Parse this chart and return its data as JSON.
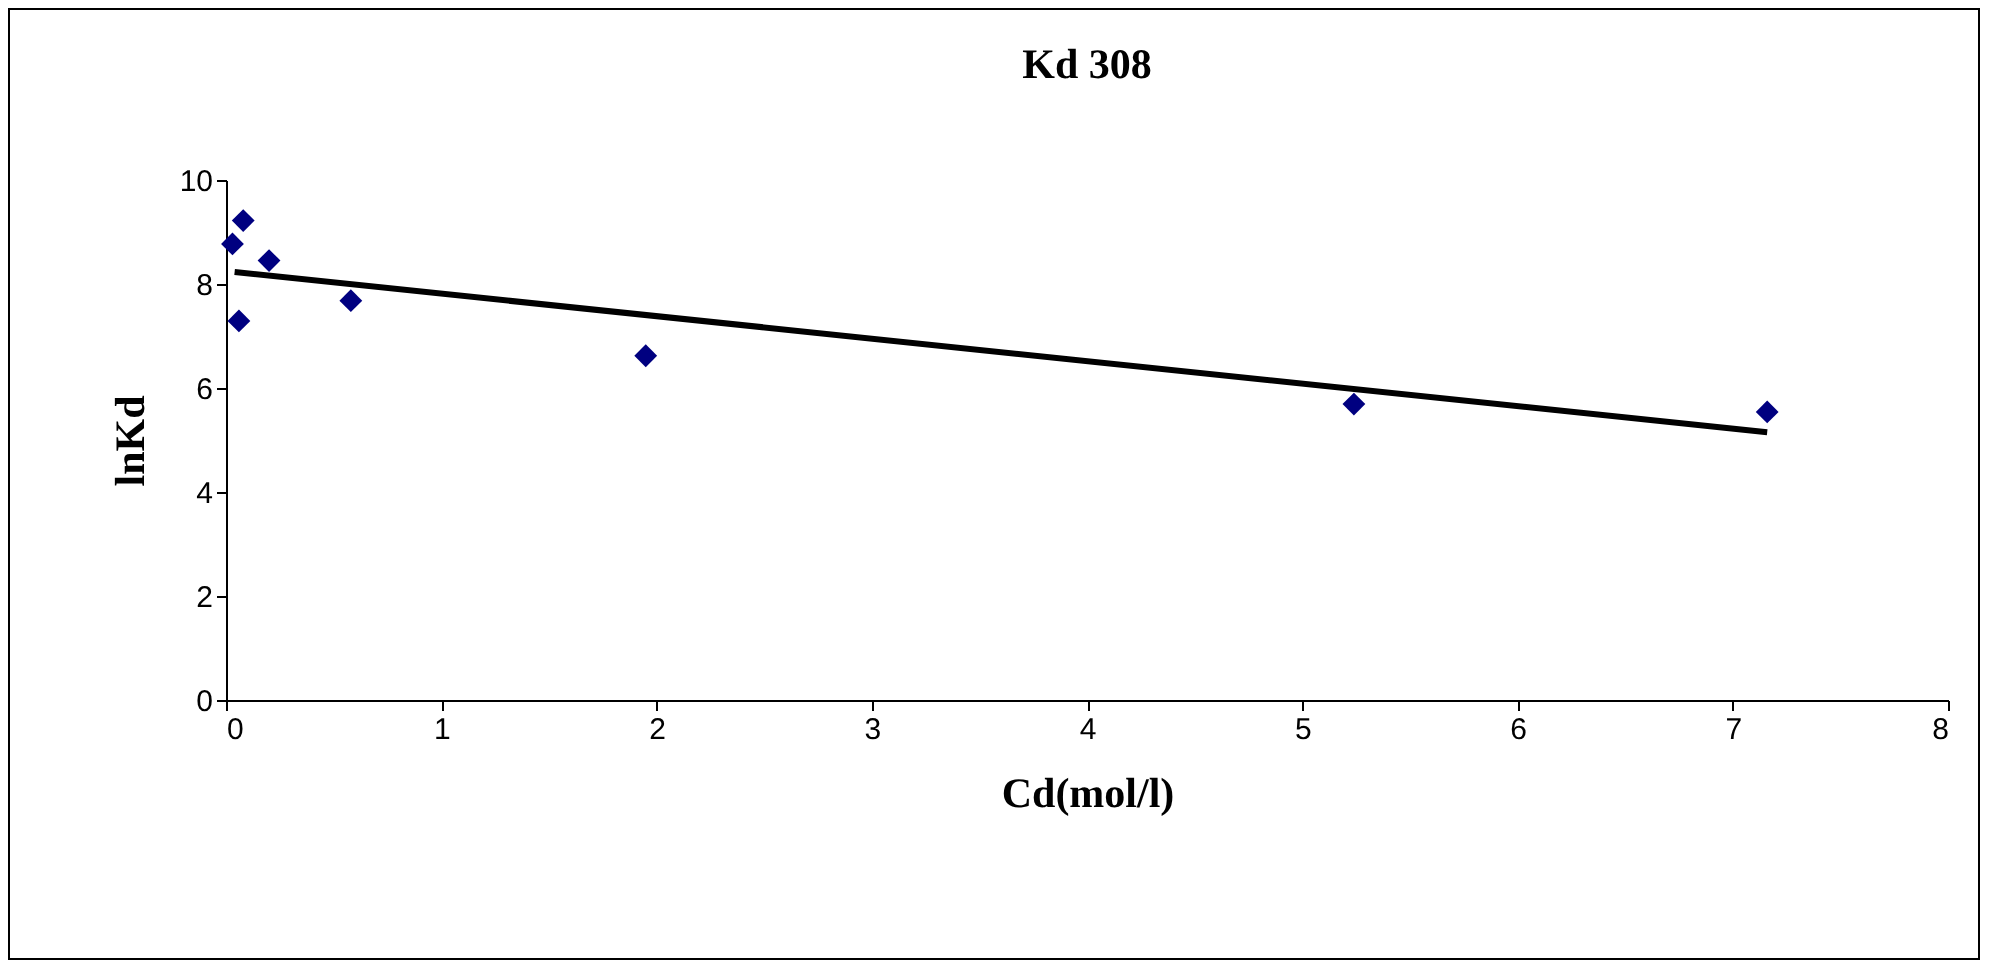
{
  "chart_data": {
    "type": "scatter",
    "title": "Kd 308",
    "xlabel": "Cd(mol/l)",
    "ylabel": "lnKd",
    "x": [
      0.03,
      0.08,
      0.06,
      0.2,
      0.58,
      1.95,
      5.24,
      7.16
    ],
    "series": [
      {
        "color": "#000080",
        "values": [
          8.77,
          9.22,
          7.29,
          8.45,
          7.68,
          6.62,
          5.69,
          5.54
        ],
        "marker": "diamond"
      },
      {
        "type": "line",
        "color": "#000000",
        "x": [
          0.04,
          7.16
        ],
        "values": [
          8.23,
          5.15
        ],
        "marker": "none",
        "line_style": "solid"
      }
    ],
    "xlim": [
      0,
      8
    ],
    "xticks": [
      0,
      1,
      2,
      3,
      4,
      5,
      6,
      7,
      8
    ],
    "ylim": [
      0,
      10
    ],
    "yticks": [
      0,
      2,
      4,
      6,
      8,
      10
    ],
    "grid": false
  }
}
